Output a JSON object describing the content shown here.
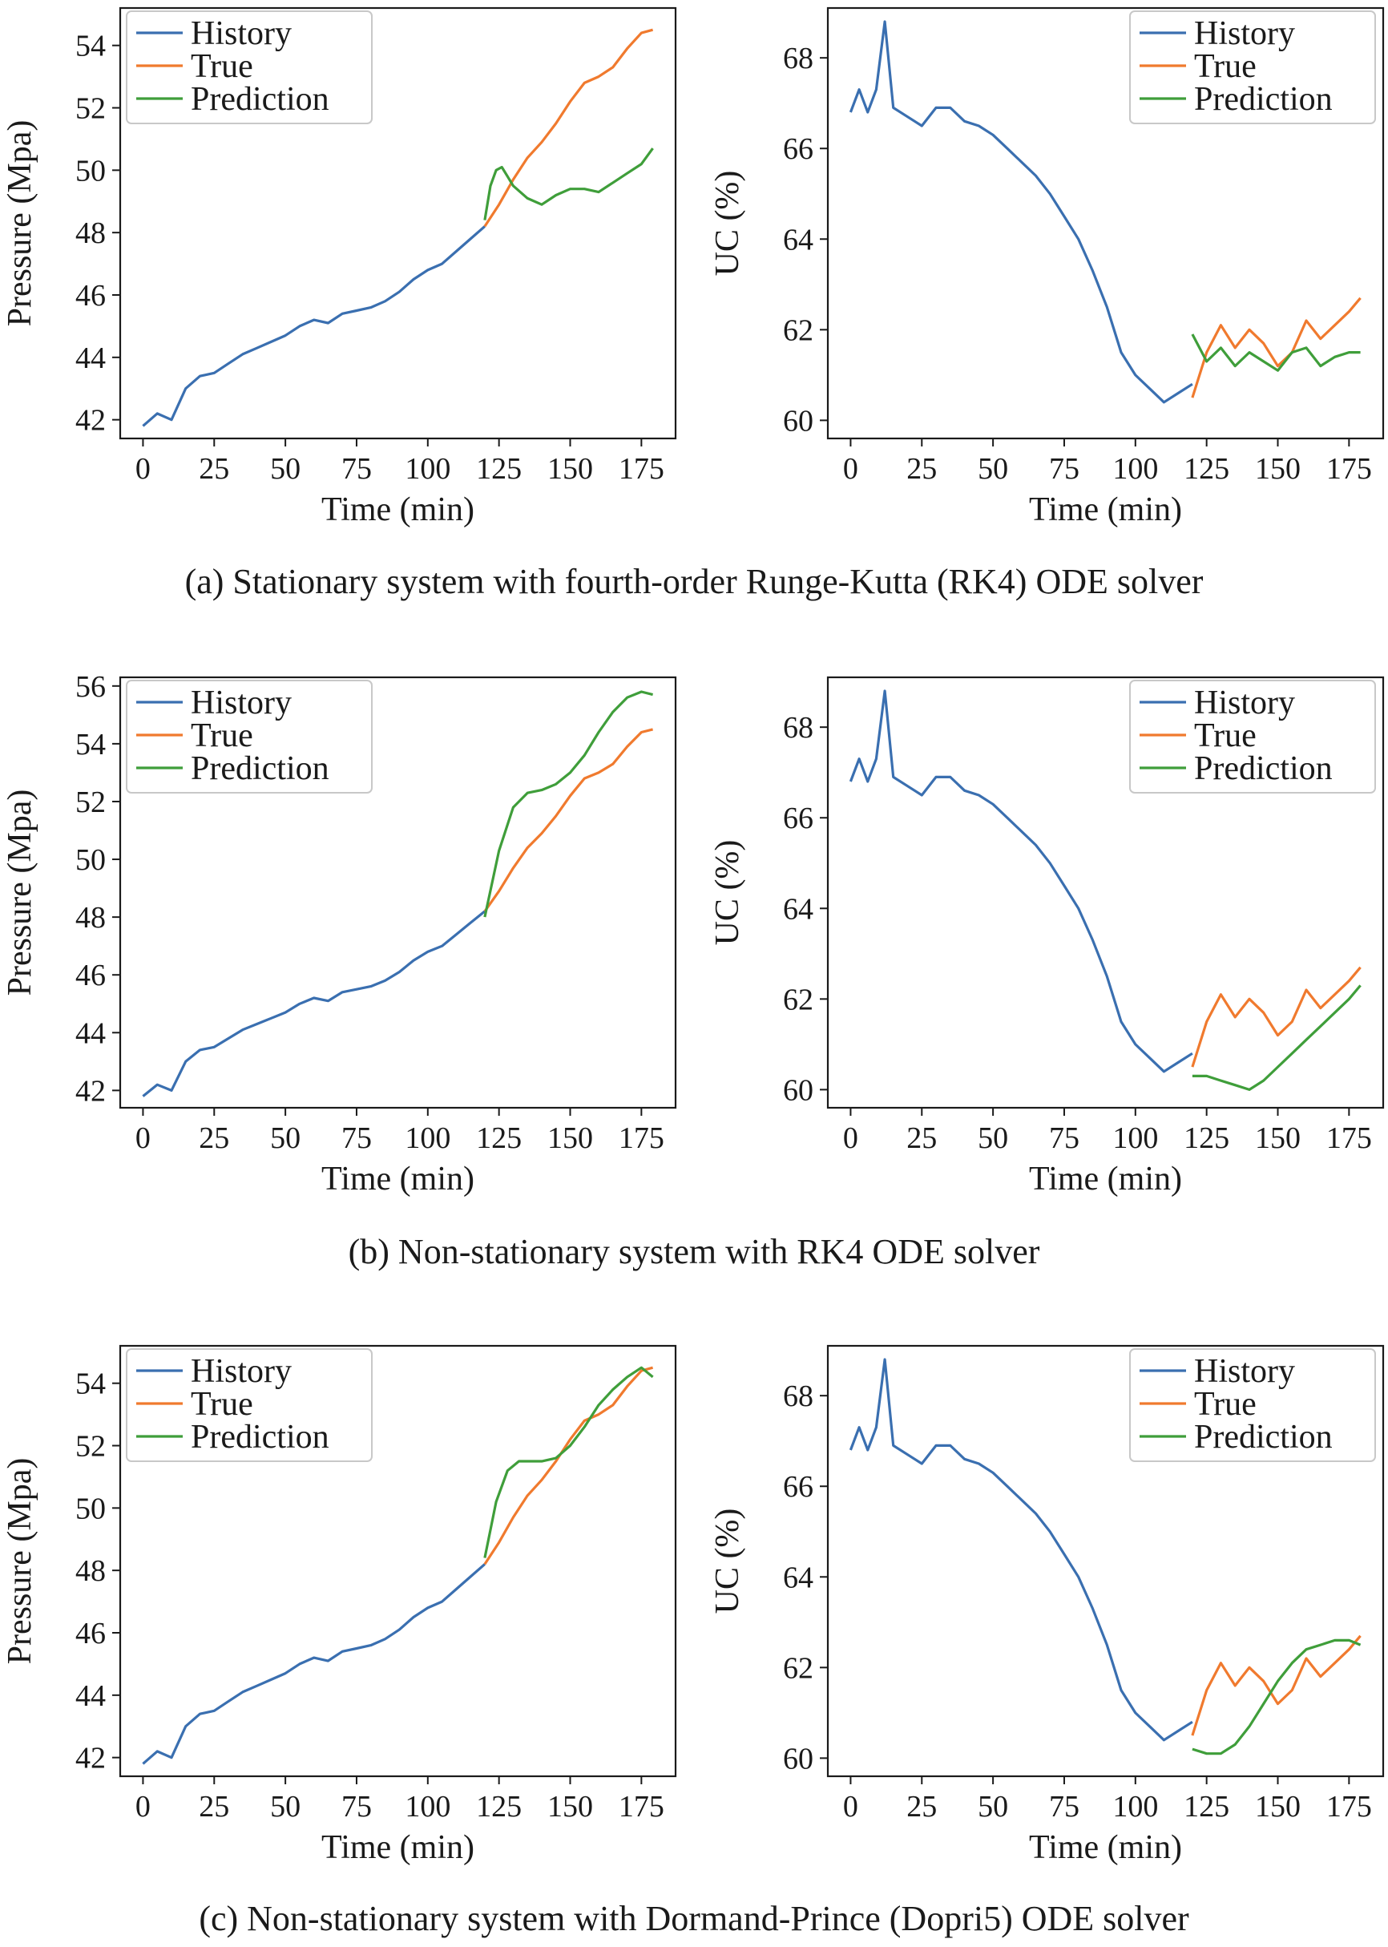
{
  "colors": {
    "history": "#3a6fb0",
    "true": "#f07a2e",
    "prediction": "#3f9e3a",
    "axis": "#1a1a1a"
  },
  "rows": [
    {
      "caption": "(a) Stationary system with fourth-order Runge-Kutta (RK4) ODE solver"
    },
    {
      "caption": "(b) Non-stationary system with RK4 ODE solver"
    },
    {
      "caption": "(c) Non-stationary system with Dormand-Prince (Dopri5) ODE solver"
    }
  ],
  "chart_data": [
    {
      "type": "line",
      "row": 0,
      "col": 0,
      "xlabel": "Time (min)",
      "ylabel": "Pressure (Mpa)",
      "xlim": [
        -8,
        187
      ],
      "ylim": [
        41.4,
        55.2
      ],
      "xticks": [
        0,
        25,
        50,
        75,
        100,
        125,
        150,
        175
      ],
      "yticks": [
        42,
        44,
        46,
        48,
        50,
        52,
        54
      ],
      "legend": "top-left",
      "series": [
        {
          "name": "History",
          "x": [
            0,
            5,
            10,
            15,
            20,
            25,
            30,
            35,
            40,
            45,
            50,
            55,
            60,
            65,
            70,
            75,
            80,
            85,
            90,
            95,
            100,
            105,
            110,
            115,
            120
          ],
          "y": [
            41.8,
            42.2,
            42.0,
            43.0,
            43.4,
            43.5,
            43.8,
            44.1,
            44.3,
            44.5,
            44.7,
            45.0,
            45.2,
            45.1,
            45.4,
            45.5,
            45.6,
            45.8,
            46.1,
            46.5,
            46.8,
            47.0,
            47.4,
            47.8,
            48.2
          ]
        },
        {
          "name": "True",
          "x": [
            120,
            125,
            130,
            135,
            140,
            145,
            150,
            155,
            160,
            165,
            170,
            175,
            179
          ],
          "y": [
            48.2,
            48.9,
            49.7,
            50.4,
            50.9,
            51.5,
            52.2,
            52.8,
            53.0,
            53.3,
            53.9,
            54.4,
            54.5
          ]
        },
        {
          "name": "Prediction",
          "x": [
            120,
            122,
            124,
            126,
            128,
            130,
            135,
            140,
            145,
            150,
            155,
            160,
            165,
            170,
            175,
            179
          ],
          "y": [
            48.4,
            49.5,
            50.0,
            50.1,
            49.8,
            49.5,
            49.1,
            48.9,
            49.2,
            49.4,
            49.4,
            49.3,
            49.6,
            49.9,
            50.2,
            50.7
          ]
        }
      ]
    },
    {
      "type": "line",
      "row": 0,
      "col": 1,
      "xlabel": "Time (min)",
      "ylabel": "UC (%)",
      "xlim": [
        -8,
        187
      ],
      "ylim": [
        59.6,
        69.1
      ],
      "xticks": [
        0,
        25,
        50,
        75,
        100,
        125,
        150,
        175
      ],
      "yticks": [
        60,
        62,
        64,
        66,
        68
      ],
      "legend": "top-right",
      "series": [
        {
          "name": "History",
          "x": [
            0,
            3,
            6,
            9,
            12,
            15,
            20,
            25,
            30,
            35,
            40,
            45,
            50,
            55,
            60,
            65,
            70,
            75,
            80,
            85,
            90,
            95,
            100,
            105,
            110,
            115,
            120
          ],
          "y": [
            66.8,
            67.3,
            66.8,
            67.3,
            68.8,
            66.9,
            66.7,
            66.5,
            66.9,
            66.9,
            66.6,
            66.5,
            66.3,
            66.0,
            65.7,
            65.4,
            65.0,
            64.5,
            64.0,
            63.3,
            62.5,
            61.5,
            61.0,
            60.7,
            60.4,
            60.6,
            60.8
          ]
        },
        {
          "name": "True",
          "x": [
            120,
            125,
            130,
            135,
            140,
            145,
            150,
            155,
            160,
            165,
            170,
            175,
            179
          ],
          "y": [
            60.5,
            61.5,
            62.1,
            61.6,
            62.0,
            61.7,
            61.2,
            61.5,
            62.2,
            61.8,
            62.1,
            62.4,
            62.7
          ]
        },
        {
          "name": "Prediction",
          "x": [
            120,
            125,
            130,
            135,
            140,
            145,
            150,
            155,
            160,
            165,
            170,
            175,
            179
          ],
          "y": [
            61.9,
            61.3,
            61.6,
            61.2,
            61.5,
            61.3,
            61.1,
            61.5,
            61.6,
            61.2,
            61.4,
            61.5,
            61.5
          ]
        }
      ]
    },
    {
      "type": "line",
      "row": 1,
      "col": 0,
      "xlabel": "Time (min)",
      "ylabel": "Pressure (Mpa)",
      "xlim": [
        -8,
        187
      ],
      "ylim": [
        41.4,
        56.3
      ],
      "xticks": [
        0,
        25,
        50,
        75,
        100,
        125,
        150,
        175
      ],
      "yticks": [
        42,
        44,
        46,
        48,
        50,
        52,
        54,
        56
      ],
      "legend": "top-left",
      "series": [
        {
          "name": "History",
          "x": [
            0,
            5,
            10,
            15,
            20,
            25,
            30,
            35,
            40,
            45,
            50,
            55,
            60,
            65,
            70,
            75,
            80,
            85,
            90,
            95,
            100,
            105,
            110,
            115,
            120
          ],
          "y": [
            41.8,
            42.2,
            42.0,
            43.0,
            43.4,
            43.5,
            43.8,
            44.1,
            44.3,
            44.5,
            44.7,
            45.0,
            45.2,
            45.1,
            45.4,
            45.5,
            45.6,
            45.8,
            46.1,
            46.5,
            46.8,
            47.0,
            47.4,
            47.8,
            48.2
          ]
        },
        {
          "name": "True",
          "x": [
            120,
            125,
            130,
            135,
            140,
            145,
            150,
            155,
            160,
            165,
            170,
            175,
            179
          ],
          "y": [
            48.2,
            48.9,
            49.7,
            50.4,
            50.9,
            51.5,
            52.2,
            52.8,
            53.0,
            53.3,
            53.9,
            54.4,
            54.5
          ]
        },
        {
          "name": "Prediction",
          "x": [
            120,
            125,
            130,
            135,
            140,
            145,
            150,
            155,
            160,
            165,
            170,
            175,
            179
          ],
          "y": [
            48.0,
            50.3,
            51.8,
            52.3,
            52.4,
            52.6,
            53.0,
            53.6,
            54.4,
            55.1,
            55.6,
            55.8,
            55.7
          ]
        }
      ]
    },
    {
      "type": "line",
      "row": 1,
      "col": 1,
      "xlabel": "Time (min)",
      "ylabel": "UC (%)",
      "xlim": [
        -8,
        187
      ],
      "ylim": [
        59.6,
        69.1
      ],
      "xticks": [
        0,
        25,
        50,
        75,
        100,
        125,
        150,
        175
      ],
      "yticks": [
        60,
        62,
        64,
        66,
        68
      ],
      "legend": "top-right",
      "series": [
        {
          "name": "History",
          "x": [
            0,
            3,
            6,
            9,
            12,
            15,
            20,
            25,
            30,
            35,
            40,
            45,
            50,
            55,
            60,
            65,
            70,
            75,
            80,
            85,
            90,
            95,
            100,
            105,
            110,
            115,
            120
          ],
          "y": [
            66.8,
            67.3,
            66.8,
            67.3,
            68.8,
            66.9,
            66.7,
            66.5,
            66.9,
            66.9,
            66.6,
            66.5,
            66.3,
            66.0,
            65.7,
            65.4,
            65.0,
            64.5,
            64.0,
            63.3,
            62.5,
            61.5,
            61.0,
            60.7,
            60.4,
            60.6,
            60.8
          ]
        },
        {
          "name": "True",
          "x": [
            120,
            125,
            130,
            135,
            140,
            145,
            150,
            155,
            160,
            165,
            170,
            175,
            179
          ],
          "y": [
            60.5,
            61.5,
            62.1,
            61.6,
            62.0,
            61.7,
            61.2,
            61.5,
            62.2,
            61.8,
            62.1,
            62.4,
            62.7
          ]
        },
        {
          "name": "Prediction",
          "x": [
            120,
            125,
            130,
            135,
            140,
            145,
            150,
            155,
            160,
            165,
            170,
            175,
            179
          ],
          "y": [
            60.3,
            60.3,
            60.2,
            60.1,
            60.0,
            60.2,
            60.5,
            60.8,
            61.1,
            61.4,
            61.7,
            62.0,
            62.3
          ]
        }
      ]
    },
    {
      "type": "line",
      "row": 2,
      "col": 0,
      "xlabel": "Time (min)",
      "ylabel": "Pressure (Mpa)",
      "xlim": [
        -8,
        187
      ],
      "ylim": [
        41.4,
        55.2
      ],
      "xticks": [
        0,
        25,
        50,
        75,
        100,
        125,
        150,
        175
      ],
      "yticks": [
        42,
        44,
        46,
        48,
        50,
        52,
        54
      ],
      "legend": "top-left",
      "series": [
        {
          "name": "History",
          "x": [
            0,
            5,
            10,
            15,
            20,
            25,
            30,
            35,
            40,
            45,
            50,
            55,
            60,
            65,
            70,
            75,
            80,
            85,
            90,
            95,
            100,
            105,
            110,
            115,
            120
          ],
          "y": [
            41.8,
            42.2,
            42.0,
            43.0,
            43.4,
            43.5,
            43.8,
            44.1,
            44.3,
            44.5,
            44.7,
            45.0,
            45.2,
            45.1,
            45.4,
            45.5,
            45.6,
            45.8,
            46.1,
            46.5,
            46.8,
            47.0,
            47.4,
            47.8,
            48.2
          ]
        },
        {
          "name": "True",
          "x": [
            120,
            125,
            130,
            135,
            140,
            145,
            150,
            155,
            160,
            165,
            170,
            175,
            179
          ],
          "y": [
            48.2,
            48.9,
            49.7,
            50.4,
            50.9,
            51.5,
            52.2,
            52.8,
            53.0,
            53.3,
            53.9,
            54.4,
            54.5
          ]
        },
        {
          "name": "Prediction",
          "x": [
            120,
            124,
            128,
            132,
            136,
            140,
            145,
            150,
            155,
            160,
            165,
            170,
            175,
            179
          ],
          "y": [
            48.4,
            50.2,
            51.2,
            51.5,
            51.5,
            51.5,
            51.6,
            52.0,
            52.6,
            53.3,
            53.8,
            54.2,
            54.5,
            54.2
          ]
        }
      ]
    },
    {
      "type": "line",
      "row": 2,
      "col": 1,
      "xlabel": "Time (min)",
      "ylabel": "UC (%)",
      "xlim": [
        -8,
        187
      ],
      "ylim": [
        59.6,
        69.1
      ],
      "xticks": [
        0,
        25,
        50,
        75,
        100,
        125,
        150,
        175
      ],
      "yticks": [
        60,
        62,
        64,
        66,
        68
      ],
      "legend": "top-right",
      "series": [
        {
          "name": "History",
          "x": [
            0,
            3,
            6,
            9,
            12,
            15,
            20,
            25,
            30,
            35,
            40,
            45,
            50,
            55,
            60,
            65,
            70,
            75,
            80,
            85,
            90,
            95,
            100,
            105,
            110,
            115,
            120
          ],
          "y": [
            66.8,
            67.3,
            66.8,
            67.3,
            68.8,
            66.9,
            66.7,
            66.5,
            66.9,
            66.9,
            66.6,
            66.5,
            66.3,
            66.0,
            65.7,
            65.4,
            65.0,
            64.5,
            64.0,
            63.3,
            62.5,
            61.5,
            61.0,
            60.7,
            60.4,
            60.6,
            60.8
          ]
        },
        {
          "name": "True",
          "x": [
            120,
            125,
            130,
            135,
            140,
            145,
            150,
            155,
            160,
            165,
            170,
            175,
            179
          ],
          "y": [
            60.5,
            61.5,
            62.1,
            61.6,
            62.0,
            61.7,
            61.2,
            61.5,
            62.2,
            61.8,
            62.1,
            62.4,
            62.7
          ]
        },
        {
          "name": "Prediction",
          "x": [
            120,
            125,
            130,
            135,
            140,
            145,
            150,
            155,
            160,
            165,
            170,
            175,
            179
          ],
          "y": [
            60.2,
            60.1,
            60.1,
            60.3,
            60.7,
            61.2,
            61.7,
            62.1,
            62.4,
            62.5,
            62.6,
            62.6,
            62.5
          ]
        }
      ]
    }
  ]
}
